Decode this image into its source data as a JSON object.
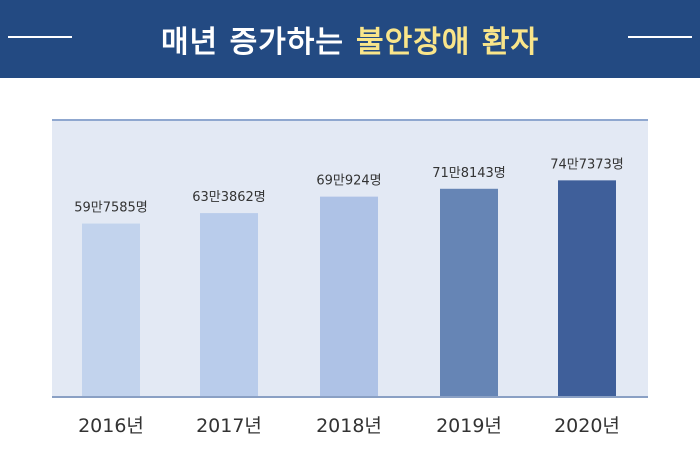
{
  "header": {
    "title_main": "매년 증가하는",
    "title_accent": "불안장애 환자"
  },
  "colors": {
    "header_bg": "#234a82",
    "title_accent": "#f9e58a",
    "plot_bg": "#e3e9f4",
    "bars": [
      "#c2d3ed",
      "#b9cceb",
      "#aec2e6",
      "#6685b5",
      "#3f5f9a"
    ]
  },
  "chart_data": {
    "type": "bar",
    "title": "매년 증가하는 불안장애 환자",
    "categories": [
      "2016년",
      "2017년",
      "2018년",
      "2019년",
      "2020년"
    ],
    "values": [
      597585,
      633862,
      690924,
      718143,
      747373
    ],
    "data_labels": [
      "59만7585명",
      "63만3862명",
      "69만924명",
      "71만8143명",
      "74만7373명"
    ],
    "xlabel": "",
    "ylabel": "",
    "ylim": [
      0,
      960000
    ],
    "grid": false,
    "legend": "none"
  }
}
